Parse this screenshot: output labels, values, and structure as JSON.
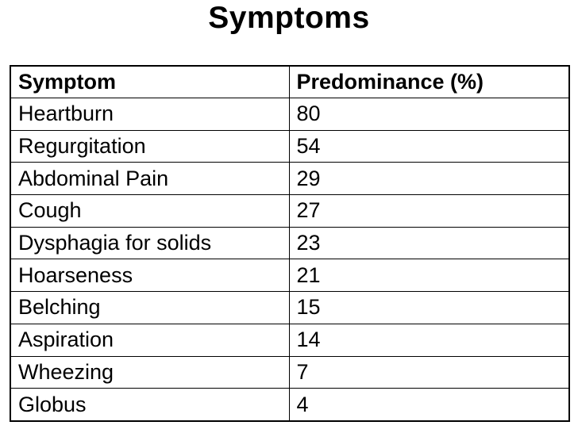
{
  "slide": {
    "title": "Symptoms"
  },
  "table": {
    "headers": {
      "symptom": "Symptom",
      "predominance": "Predominance (%)"
    },
    "rows": [
      {
        "symptom": "Heartburn",
        "value": "80"
      },
      {
        "symptom": "Regurgitation",
        "value": "54"
      },
      {
        "symptom": "Abdominal Pain",
        "value": "29"
      },
      {
        "symptom": "Cough",
        "value": "27"
      },
      {
        "symptom": "Dysphagia for solids",
        "value": "23"
      },
      {
        "symptom": "Hoarseness",
        "value": "21"
      },
      {
        "symptom": "Belching",
        "value": "15"
      },
      {
        "symptom": "Aspiration",
        "value": "14"
      },
      {
        "symptom": "Wheezing",
        "value": "7"
      },
      {
        "symptom": "Globus",
        "value": "4"
      }
    ]
  },
  "colors": {
    "background": "#ffffff",
    "text": "#000000",
    "border": "#000000"
  },
  "chart_data": {
    "type": "table",
    "title": "Symptoms",
    "categories": [
      "Heartburn",
      "Regurgitation",
      "Abdominal Pain",
      "Cough",
      "Dysphagia for solids",
      "Hoarseness",
      "Belching",
      "Aspiration",
      "Wheezing",
      "Globus"
    ],
    "values": [
      80,
      54,
      29,
      27,
      23,
      21,
      15,
      14,
      7,
      4
    ],
    "xlabel": "Symptom",
    "ylabel": "Predominance (%)"
  }
}
